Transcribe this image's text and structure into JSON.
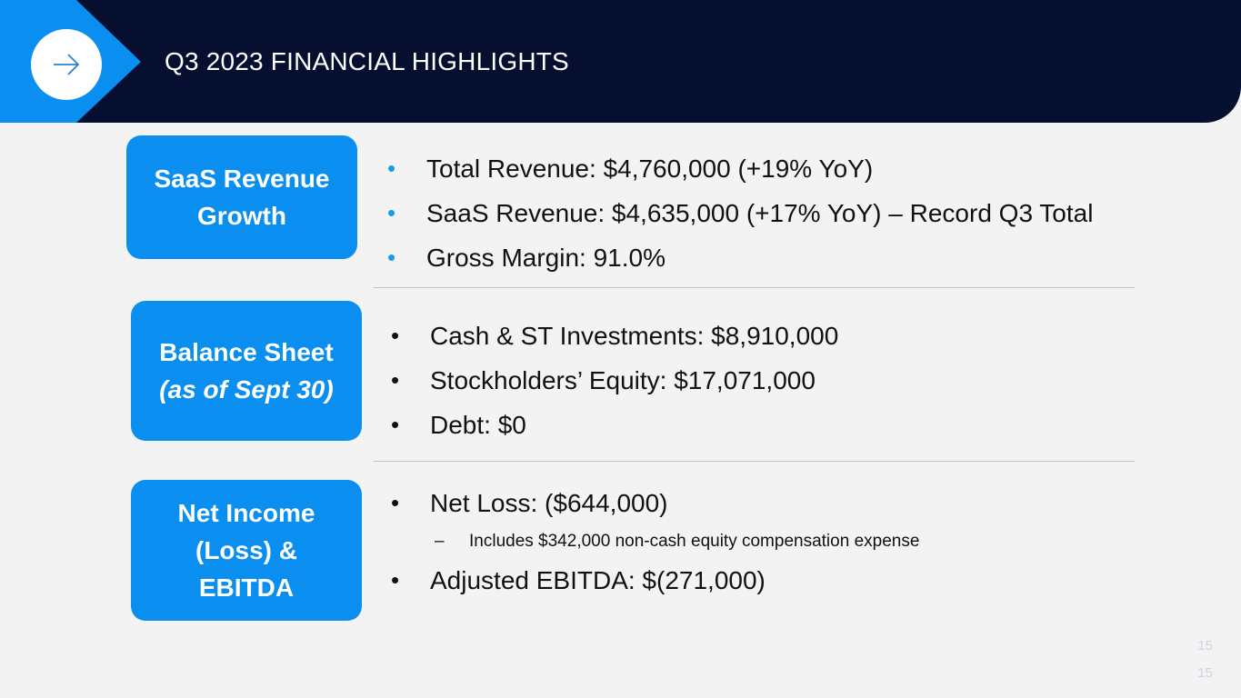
{
  "slide": {
    "title": "Q3 2023 FINANCIAL HIGHLIGHTS",
    "header_icon": "arrow-right-icon",
    "colors": {
      "navy": "#060f30",
      "accent": "#0a8ef0",
      "bullet_accent": "#1a9bea"
    }
  },
  "sections": {
    "saas": {
      "label": "SaaS Revenue Growth",
      "bullets": [
        "Total Revenue: $4,760,000  (+19% YoY)",
        "SaaS Revenue: $4,635,000  (+17% YoY) – Record Q3 Total",
        "Gross Margin: 91.0%"
      ]
    },
    "balance": {
      "label": "Balance Sheet",
      "label_sub": "(as of Sept 30)",
      "bullets": [
        "Cash & ST Investments: $8,910,000",
        "Stockholders’ Equity: $17,071,000",
        "Debt: $0"
      ]
    },
    "income": {
      "label_lines": [
        "Net Income",
        "(Loss) &",
        "EBITDA"
      ],
      "bullets": [
        "Net Loss: ($644,000)",
        "Adjusted EBITDA: $(271,000)"
      ],
      "sub_bullet": "Includes $342,000 non-cash equity compensation expense"
    }
  },
  "page_numbers": [
    "15",
    "15"
  ]
}
